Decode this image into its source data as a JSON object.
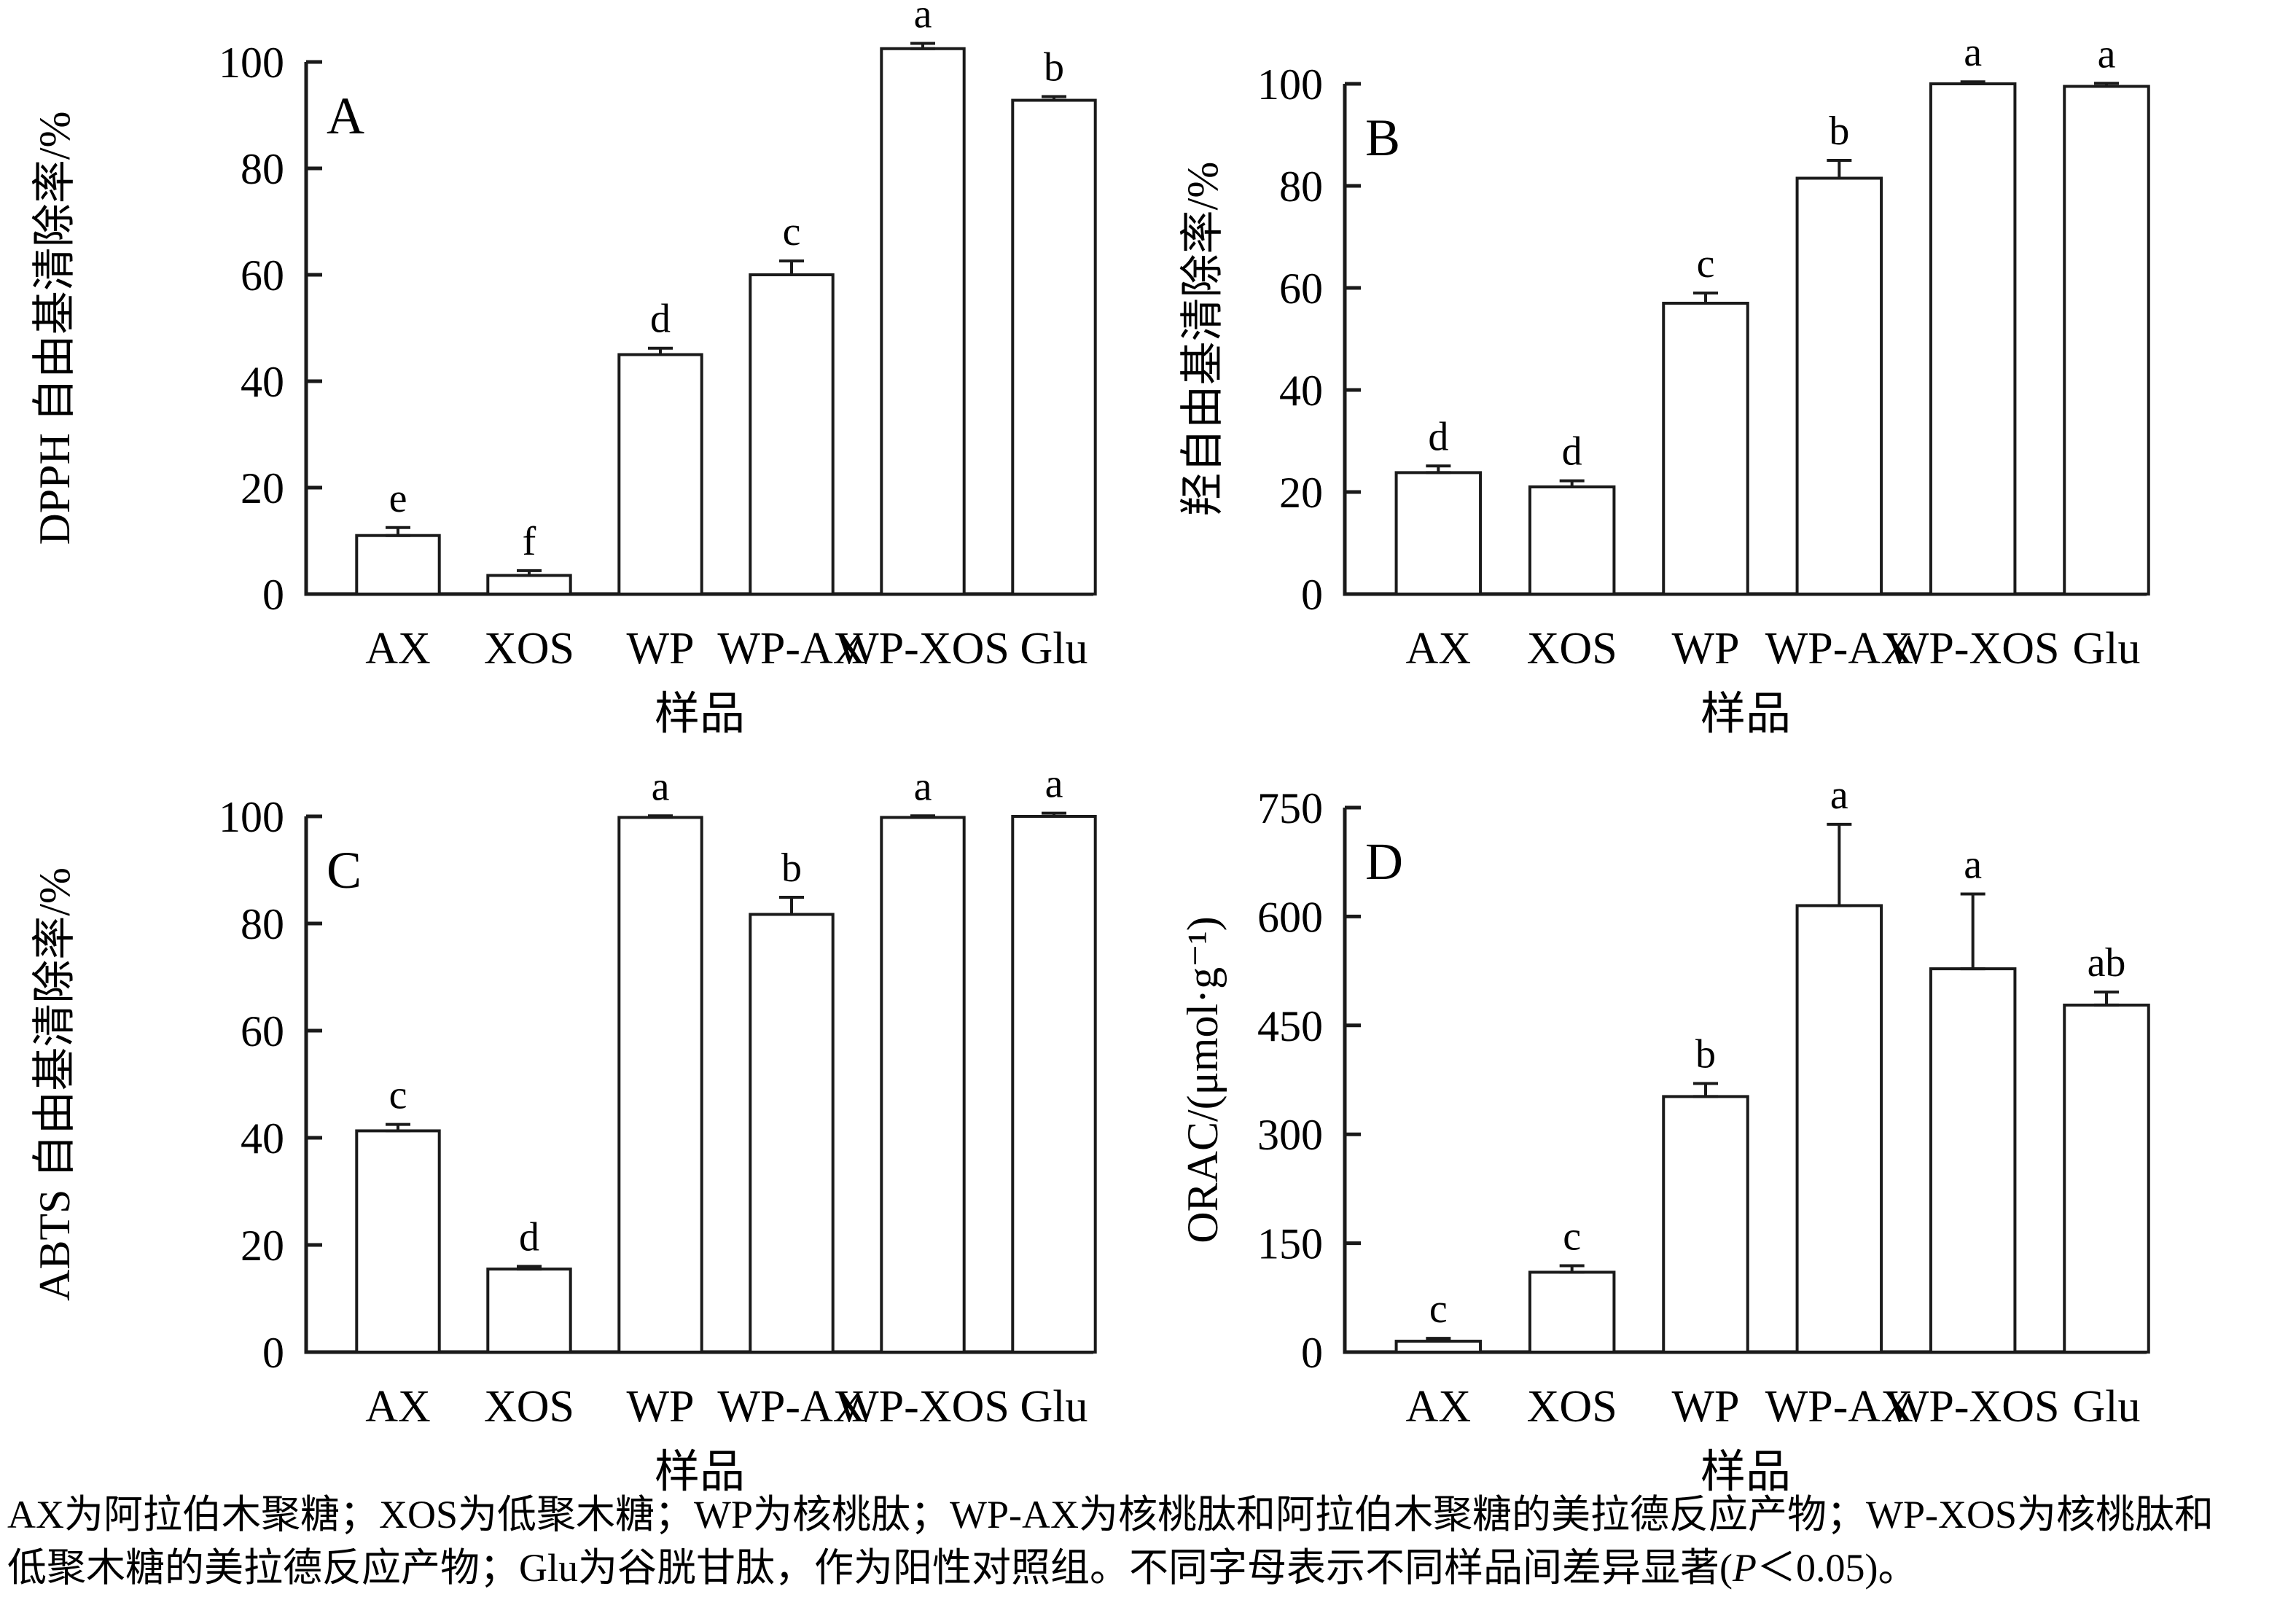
{
  "figure": {
    "x_axis_label": "样品",
    "categories": [
      "AX",
      "XOS",
      "WP",
      "WP-AX",
      "WP-XOS",
      "Glu"
    ]
  },
  "chart_data": [
    {
      "type": "bar",
      "panel": "A",
      "ylabel": "DPPH 自由基清除率/%",
      "xlabel": "样品",
      "categories": [
        "AX",
        "XOS",
        "WP",
        "WP-AX",
        "WP-XOS",
        "Glu"
      ],
      "values": [
        11,
        3.5,
        45,
        60,
        102.5,
        92.8
      ],
      "errors": [
        1.5,
        0.9,
        1.2,
        2.6,
        1.0,
        0.7
      ],
      "sig_letters": [
        "e",
        "f",
        "d",
        "c",
        "a",
        "b"
      ],
      "yticks": [
        0,
        20,
        40,
        60,
        80,
        100
      ],
      "ylim": [
        0,
        100
      ],
      "grid": false,
      "legend": null,
      "bar_fill": "#ffffff",
      "bar_stroke": "#1a1a1a"
    },
    {
      "type": "bar",
      "panel": "B",
      "ylabel": "羟自由基清除率/%",
      "xlabel": "样品",
      "categories": [
        "AX",
        "XOS",
        "WP",
        "WP-AX",
        "WP-XOS",
        "Glu"
      ],
      "values": [
        23.8,
        21,
        57,
        81.5,
        100,
        99.5
      ],
      "errors": [
        1.3,
        1.2,
        2.0,
        3.5,
        0.4,
        0.6
      ],
      "sig_letters": [
        "d",
        "d",
        "c",
        "b",
        "a",
        "a"
      ],
      "yticks": [
        0,
        20,
        40,
        60,
        80,
        100
      ],
      "ylim": [
        0,
        100
      ],
      "grid": false,
      "legend": null,
      "bar_fill": "#ffffff",
      "bar_stroke": "#1a1a1a"
    },
    {
      "type": "bar",
      "panel": "C",
      "ylabel": "ABTS 自由基清除率/%",
      "xlabel": "样品",
      "categories": [
        "AX",
        "XOS",
        "WP",
        "WP-AX",
        "WP-XOS",
        "Glu"
      ],
      "values": [
        41.3,
        15.5,
        99.8,
        81.7,
        99.8,
        100
      ],
      "errors": [
        1.2,
        0.5,
        0.3,
        3.2,
        0.3,
        0.6
      ],
      "sig_letters": [
        "c",
        "d",
        "a",
        "b",
        "a",
        "a"
      ],
      "yticks": [
        0,
        20,
        40,
        60,
        80,
        100
      ],
      "ylim": [
        0,
        100
      ],
      "grid": false,
      "legend": null,
      "bar_fill": "#ffffff",
      "bar_stroke": "#1a1a1a"
    },
    {
      "type": "bar",
      "panel": "D",
      "ylabel": "ORAC/(μmol·g⁻¹)",
      "xlabel": "样品",
      "categories": [
        "AX",
        "XOS",
        "WP",
        "WP-AX",
        "WP-XOS",
        "Glu"
      ],
      "values": [
        15,
        110,
        352,
        615,
        528,
        478
      ],
      "errors": [
        4,
        9,
        18,
        112,
        103,
        18
      ],
      "sig_letters": [
        "c",
        "c",
        "b",
        "a",
        "a",
        "ab"
      ],
      "yticks": [
        0,
        150,
        300,
        450,
        600,
        750
      ],
      "ylim": [
        0,
        750
      ],
      "grid": false,
      "legend": null,
      "bar_fill": "#ffffff",
      "bar_stroke": "#1a1a1a"
    }
  ],
  "caption": {
    "line1": "AX为阿拉伯木聚糖；XOS为低聚木糖；WP为核桃肽；WP-AX为核桃肽和阿拉伯木聚糖的美拉德反应产物；WP-XOS为核桃肽和",
    "line2_pre": "低聚木糖的美拉德反应产物；Glu为谷胱甘肽，作为阳性对照组。不同字母表示不同样品间差异显著(",
    "line2_p": "P",
    "line2_post": "＜0.05)。"
  }
}
